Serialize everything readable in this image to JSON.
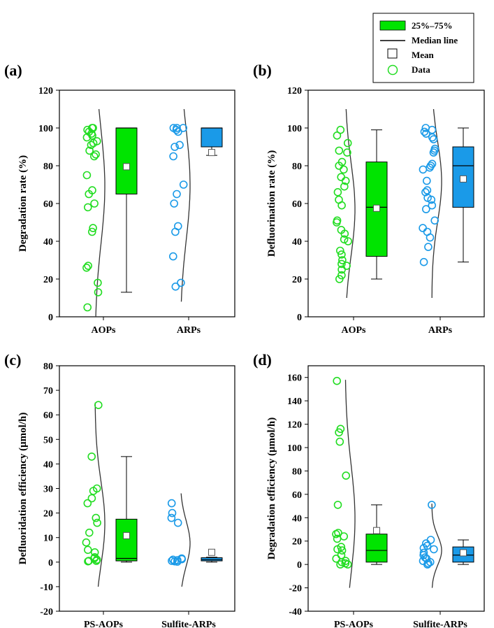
{
  "colors": {
    "green": "#00e400",
    "blue": "#1a9ae8",
    "green_pt": "#22dd22",
    "blue_pt": "#1a9ae8"
  },
  "legend": {
    "items": [
      {
        "key": "box",
        "label": "25%–75%"
      },
      {
        "key": "median",
        "label": "Median line"
      },
      {
        "key": "mean",
        "label": "Mean"
      },
      {
        "key": "data",
        "label": "Data"
      }
    ]
  },
  "chart_data": [
    {
      "panel": "(a)",
      "type": "box",
      "ylabel": "Degradation rate (%)",
      "ylim": [
        0,
        120
      ],
      "yticks": [
        0,
        20,
        40,
        60,
        80,
        100,
        120
      ],
      "categories": [
        "AOPs",
        "ARPs"
      ],
      "series": [
        {
          "name": "AOPs",
          "color": "green",
          "q1": 65,
          "median": 100,
          "q3": 100,
          "whisker_low": 13,
          "whisker_high": 100,
          "mean": 79.5,
          "points": [
            100,
            100,
            99,
            98,
            97,
            96,
            95,
            93,
            92,
            91,
            88,
            86,
            85,
            75,
            67,
            65,
            60,
            58,
            47,
            45,
            27,
            26,
            18,
            13,
            5
          ],
          "curve_range": [
            0,
            110
          ]
        },
        {
          "name": "ARPs",
          "color": "blue",
          "q1": 90,
          "median": 100,
          "q3": 100,
          "whisker_low": 85.5,
          "whisker_high": 100,
          "mean": 87,
          "points": [
            100,
            100,
            100,
            99,
            98,
            91,
            90,
            85,
            70,
            65,
            60,
            48,
            45,
            32,
            18,
            16
          ],
          "curve_range": [
            8,
            110
          ]
        }
      ]
    },
    {
      "panel": "(b)",
      "type": "box",
      "ylabel": "Defluorination rate (%)",
      "ylim": [
        0,
        120
      ],
      "yticks": [
        0,
        20,
        40,
        60,
        80,
        100,
        120
      ],
      "categories": [
        "AOPs",
        "ARPs"
      ],
      "series": [
        {
          "name": "AOPs",
          "color": "green",
          "q1": 32,
          "median": 58,
          "q3": 82,
          "whisker_low": 20,
          "whisker_high": 99,
          "mean": 57.5,
          "points": [
            99,
            96,
            92,
            88,
            87,
            82,
            80,
            78,
            74,
            72,
            69,
            66,
            62,
            59,
            51,
            50,
            46,
            44,
            41,
            40,
            35,
            33,
            30,
            28,
            27,
            25,
            22,
            20
          ],
          "curve_range": [
            10,
            110
          ]
        },
        {
          "name": "ARPs",
          "color": "blue",
          "q1": 58,
          "median": 80,
          "q3": 90,
          "whisker_low": 29,
          "whisker_high": 100,
          "mean": 73,
          "points": [
            100,
            99,
            98,
            97,
            95,
            94,
            89,
            88,
            87,
            81,
            80,
            79,
            78,
            72,
            67,
            66,
            63,
            62,
            59,
            57,
            51,
            47,
            45,
            42,
            37,
            29
          ],
          "curve_range": [
            10,
            110
          ]
        }
      ]
    },
    {
      "panel": "(c)",
      "type": "box",
      "ylabel": "Defluoridation efficiency  (μmol/h)",
      "ylim": [
        -20,
        80
      ],
      "yticks": [
        -20,
        -10,
        0,
        10,
        20,
        30,
        40,
        50,
        60,
        70,
        80
      ],
      "categories": [
        "PS-AOPs",
        "Sulfite-ARPs"
      ],
      "series": [
        {
          "name": "PS-AOPs",
          "color": "green",
          "q1": 0.5,
          "median": 1.5,
          "q3": 17.5,
          "whisker_low": 0,
          "whisker_high": 43,
          "mean": 10.8,
          "points": [
            64,
            43,
            30,
            29,
            26,
            24,
            18,
            16,
            12,
            8,
            5,
            4,
            2,
            1.5,
            1,
            0.5,
            0.5,
            0.3
          ],
          "curve_range": [
            -10,
            65
          ]
        },
        {
          "name": "Sulfite-ARPs",
          "color": "blue",
          "q1": 0.5,
          "median": 1.0,
          "q3": 1.8,
          "whisker_low": 0,
          "whisker_high": 2,
          "mean": 4,
          "points": [
            24,
            20,
            18,
            16,
            1.5,
            1.2,
            1,
            0.8,
            0.5,
            0.3,
            0.2
          ],
          "curve_range": [
            -10,
            28
          ]
        }
      ]
    },
    {
      "panel": "(d)",
      "type": "box",
      "ylabel": "Degradation efficiency  (μmol/h)",
      "ylim": [
        -40,
        170
      ],
      "yticks": [
        -40,
        -20,
        0,
        20,
        40,
        60,
        80,
        100,
        120,
        140,
        160
      ],
      "categories": [
        "PS-AOPs",
        "Sulfite-ARPs"
      ],
      "series": [
        {
          "name": "PS-AOPs",
          "color": "green",
          "q1": 2,
          "median": 12,
          "q3": 26,
          "whisker_low": 0,
          "whisker_high": 51,
          "mean": 29,
          "points": [
            157,
            116,
            113,
            105,
            76,
            51,
            27,
            26,
            24,
            22,
            15,
            13,
            12,
            8,
            5,
            3,
            2,
            1,
            0,
            0
          ],
          "curve_range": [
            -20,
            158
          ]
        },
        {
          "name": "Sulfite-ARPs",
          "color": "blue",
          "q1": 2,
          "median": 8,
          "q3": 15,
          "whisker_low": 0,
          "whisker_high": 21,
          "mean": 10,
          "points": [
            51,
            21,
            18,
            16,
            14,
            13,
            10,
            8,
            6,
            5,
            3,
            2,
            1,
            0
          ],
          "curve_range": [
            -20,
            52
          ]
        }
      ]
    }
  ]
}
